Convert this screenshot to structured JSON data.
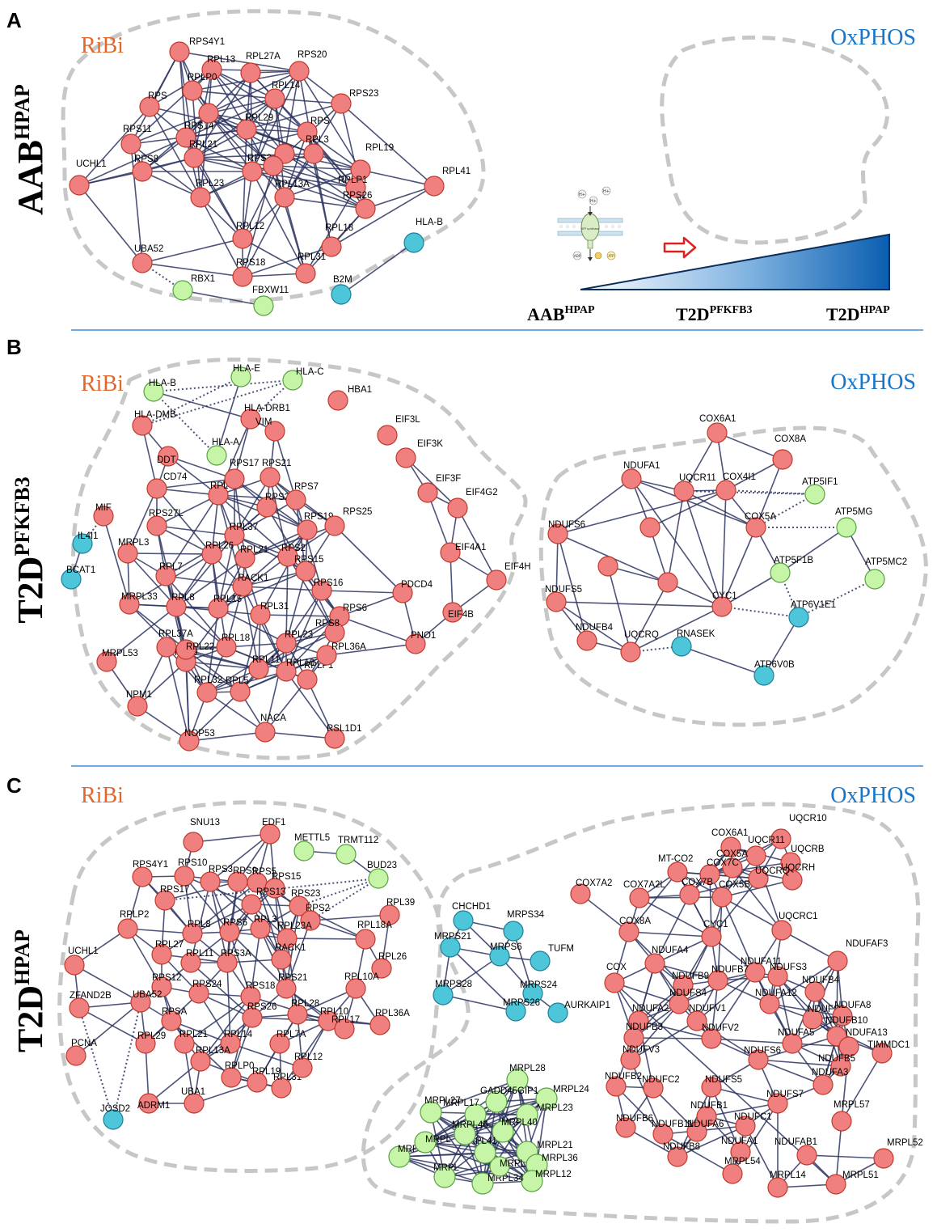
{
  "colors": {
    "red": "#f08080",
    "red_stroke": "#c0392b",
    "green": "#c6f5a8",
    "green_stroke": "#5aa043",
    "blue": "#4cc6d8",
    "blue_stroke": "#1f7f96",
    "ribi": "#e4672a",
    "oxphos": "#1976c9",
    "separator": "#3b8fd8"
  },
  "panel_letters": [
    "A",
    "B",
    "C"
  ],
  "cluster_titles": {
    "ribi": "RiBi",
    "oxphos": "OxPHOS"
  },
  "row_labels": [
    {
      "main": "AAB",
      "sup": "HPAP"
    },
    {
      "main": "T2D",
      "sup": "PFKFB3"
    },
    {
      "main": "T2D",
      "sup": "HPAP"
    }
  ],
  "scale_labels": [
    {
      "main": "AAB",
      "sup": "HPAP"
    },
    {
      "main": "T2D",
      "sup": "PFKFB3"
    },
    {
      "main": "T2D",
      "sup": "HPAP"
    }
  ],
  "atp_icon": {
    "ions": [
      "H+",
      "H+",
      "H+"
    ],
    "center": "ATP synthase",
    "left": "ADP",
    "right": "ATP"
  },
  "panels": [
    {
      "nodes": [
        [
          "RPS4Y1",
          "r"
        ],
        [
          "RPL13",
          "r"
        ],
        [
          "RPL27A",
          "r"
        ],
        [
          "RPS20",
          "r"
        ],
        [
          "RPLP0",
          "r"
        ],
        [
          "RPL14",
          "r"
        ],
        [
          "RPS",
          "r"
        ],
        [
          "RPS23",
          "r"
        ],
        [
          "RPS11",
          "r"
        ],
        [
          "RPS14",
          "r"
        ],
        [
          "RPL29",
          "r"
        ],
        [
          "RPS",
          "r"
        ],
        [
          "UCHL1",
          "r"
        ],
        [
          "RPL21",
          "r"
        ],
        [
          "RPL3",
          "r"
        ],
        [
          "RPL19",
          "r"
        ],
        [
          "RPL41",
          "r"
        ],
        [
          "RPS8",
          "r"
        ],
        [
          "RPS24",
          "r"
        ],
        [
          "RPL13A",
          "r"
        ],
        [
          "RPLP1",
          "r"
        ],
        [
          "RPS26",
          "r"
        ],
        [
          "RPL23",
          "r"
        ],
        [
          "RPL12",
          "r"
        ],
        [
          "RPL18",
          "r"
        ],
        [
          "UBA52",
          "r"
        ],
        [
          "RPS18",
          "r"
        ],
        [
          "RPL31",
          "r"
        ],
        [
          "HLA-B",
          "b"
        ],
        [
          "B2M",
          "b"
        ],
        [
          "RBX1",
          "g"
        ],
        [
          "FBXW11",
          "g"
        ],
        [
          "",
          "r"
        ],
        [
          "",
          "r"
        ],
        [
          "",
          "r"
        ]
      ]
    },
    {
      "nodes": [
        [
          "HLA-B",
          "g"
        ],
        [
          "HLA-E",
          "g"
        ],
        [
          "HLA-C",
          "g"
        ],
        [
          "HLA-DMB",
          "r"
        ],
        [
          "HLA-DRB1",
          "r"
        ],
        [
          "VIM",
          "r"
        ],
        [
          "DDT",
          "r"
        ],
        [
          "HLA-A",
          "g"
        ],
        [
          "HBA1",
          "r"
        ],
        [
          "EIF3L",
          "r"
        ],
        [
          "EIF3K",
          "r"
        ],
        [
          "EIF3F",
          "r"
        ],
        [
          "EIF4G2",
          "r"
        ],
        [
          "CD74",
          "r"
        ],
        [
          "MIF",
          "r"
        ],
        [
          "RPS17",
          "r"
        ],
        [
          "RPS21",
          "r"
        ],
        [
          "RPL",
          "r"
        ],
        [
          "RPS29",
          "r"
        ],
        [
          "RPS7",
          "r"
        ],
        [
          "RPS27L",
          "r"
        ],
        [
          "RPL37",
          "r"
        ],
        [
          "RPS19",
          "r"
        ],
        [
          "IL4I1",
          "b"
        ],
        [
          "BCAT1",
          "b"
        ],
        [
          "MRPL3",
          "r"
        ],
        [
          "RPL26",
          "r"
        ],
        [
          "RPL21",
          "r"
        ],
        [
          "RPS2",
          "r"
        ],
        [
          "RPS15",
          "r"
        ],
        [
          "RPS25",
          "r"
        ],
        [
          "EIF4A1",
          "r"
        ],
        [
          "RPL7",
          "r"
        ],
        [
          "RACK1",
          "r"
        ],
        [
          "RPS16",
          "r"
        ],
        [
          "RPS6",
          "r"
        ],
        [
          "EIF4H",
          "r"
        ],
        [
          "MRPL33",
          "r"
        ],
        [
          "RPL8",
          "r"
        ],
        [
          "RPL15",
          "r"
        ],
        [
          "RPL31",
          "r"
        ],
        [
          "RPS8",
          "r"
        ],
        [
          "PDCD4",
          "r"
        ],
        [
          "EIF4B",
          "r"
        ],
        [
          "RPL37A",
          "r"
        ],
        [
          "RPL9",
          "r"
        ],
        [
          "RPL18",
          "r"
        ],
        [
          "RPL23",
          "r"
        ],
        [
          "RPL22",
          "r"
        ],
        [
          "RPL11",
          "r"
        ],
        [
          "RPLP1",
          "r"
        ],
        [
          "RPL36A",
          "r"
        ],
        [
          "PNO1",
          "r"
        ],
        [
          "MRPL53",
          "r"
        ],
        [
          "RPL32",
          "r"
        ],
        [
          "RPL5",
          "r"
        ],
        [
          "RPL10",
          "r"
        ],
        [
          "NPM1",
          "r"
        ],
        [
          "NOP53",
          "r"
        ],
        [
          "NACA",
          "r"
        ],
        [
          "RSL1D1",
          "r"
        ],
        [
          "COX6A1",
          "r"
        ],
        [
          "COX8A",
          "r"
        ],
        [
          "NDUFA1",
          "r"
        ],
        [
          "UQCR11",
          "r"
        ],
        [
          "COX4I1",
          "r"
        ],
        [
          "ATP5IF1",
          "g"
        ],
        [
          "NDUFS6",
          "r"
        ],
        [
          "COX5A",
          "r"
        ],
        [
          "ATP5MG",
          "g"
        ],
        [
          "NDUFS5",
          "r"
        ],
        [
          "ATP5F1B",
          "g"
        ],
        [
          "CYC1",
          "r"
        ],
        [
          "ATP5MC2",
          "g"
        ],
        [
          "NDUFB4",
          "r"
        ],
        [
          "ATP6V1E1",
          "b"
        ],
        [
          "UQCRQ",
          "r"
        ],
        [
          "RNASEK",
          "b"
        ],
        [
          "ATP6V0B",
          "b"
        ],
        [
          "",
          "r"
        ],
        [
          "",
          "r"
        ],
        [
          "",
          "r"
        ]
      ]
    },
    {
      "nodes": [
        [
          "SNU13",
          "r"
        ],
        [
          "EDF1",
          "r"
        ],
        [
          "METTL5",
          "g"
        ],
        [
          "TRMT112",
          "g"
        ],
        [
          "RPS4Y1",
          "r"
        ],
        [
          "BUD23",
          "g"
        ],
        [
          "RPS10",
          "r"
        ],
        [
          "RPS3",
          "r"
        ],
        [
          "RPS9",
          "r"
        ],
        [
          "RPS5",
          "r"
        ],
        [
          "RPS15",
          "r"
        ],
        [
          "RPS17",
          "r"
        ],
        [
          "RPS13",
          "r"
        ],
        [
          "RPS23",
          "r"
        ],
        [
          "RPL39",
          "r"
        ],
        [
          "RPLP2",
          "r"
        ],
        [
          "RPS2",
          "r"
        ],
        [
          "RPL8",
          "r"
        ],
        [
          "RPS6",
          "r"
        ],
        [
          "RPL3",
          "r"
        ],
        [
          "RPL23A",
          "r"
        ],
        [
          "RPL18A",
          "r"
        ],
        [
          "UCHL1",
          "r"
        ],
        [
          "RPL27",
          "r"
        ],
        [
          "RPL11",
          "r"
        ],
        [
          "RPS3A",
          "r"
        ],
        [
          "RACK1",
          "r"
        ],
        [
          "RPL26",
          "r"
        ],
        [
          "RPS12",
          "r"
        ],
        [
          "RPS24",
          "r"
        ],
        [
          "RPS18",
          "r"
        ],
        [
          "RPS21",
          "r"
        ],
        [
          "RPL10A",
          "r"
        ],
        [
          "ZFAND2B",
          "r"
        ],
        [
          "RPL36A",
          "r"
        ],
        [
          "UBA52",
          "r"
        ],
        [
          "RPSA",
          "r"
        ],
        [
          "RPS26",
          "r"
        ],
        [
          "RPL28",
          "r"
        ],
        [
          "RPL10",
          "r"
        ],
        [
          "PCNA",
          "r"
        ],
        [
          "RPL21",
          "r"
        ],
        [
          "RPL14",
          "r"
        ],
        [
          "RPL7A",
          "r"
        ],
        [
          "RPL17",
          "r"
        ],
        [
          "RPL29",
          "r"
        ],
        [
          "RPL13A",
          "r"
        ],
        [
          "RPLP0",
          "r"
        ],
        [
          "RPL19",
          "r"
        ],
        [
          "RPL31",
          "r"
        ],
        [
          "RPL12",
          "r"
        ],
        [
          "JOSD2",
          "b"
        ],
        [
          "ADRM1",
          "r"
        ],
        [
          "UBA1",
          "r"
        ],
        [
          "CHCHD1",
          "b"
        ],
        [
          "MRPS34",
          "b"
        ],
        [
          "MRPS21",
          "b"
        ],
        [
          "MRPS6",
          "b"
        ],
        [
          "TUFM",
          "b"
        ],
        [
          "MRPS28",
          "b"
        ],
        [
          "MRPS24",
          "b"
        ],
        [
          "MRPS26",
          "b"
        ],
        [
          "AURKAIP1",
          "b"
        ],
        [
          "MRPL28",
          "g"
        ],
        [
          "MRPL24",
          "g"
        ],
        [
          "GADD45GIP1",
          "g"
        ],
        [
          "MRPL23",
          "g"
        ],
        [
          "MRPL27",
          "g"
        ],
        [
          "MRPL17",
          "g"
        ],
        [
          "MRPL40",
          "g"
        ],
        [
          "MRPL41",
          "g"
        ],
        [
          "MRPL46",
          "g"
        ],
        [
          "MRPL21",
          "g"
        ],
        [
          "MRPL36",
          "g"
        ],
        [
          "MRPL12",
          "g"
        ],
        [
          "MRPL34",
          "g"
        ],
        [
          "MRPL",
          "g"
        ],
        [
          "MRPL",
          "g"
        ],
        [
          "MRPL",
          "g"
        ],
        [
          "MRPL",
          "g"
        ],
        [
          "UQCR10",
          "r"
        ],
        [
          "UQCR11",
          "r"
        ],
        [
          "UQCRB",
          "r"
        ],
        [
          "UQCRH",
          "r"
        ],
        [
          "COX6A1",
          "r"
        ],
        [
          "COX5A",
          "r"
        ],
        [
          "UQCRQ",
          "r"
        ],
        [
          "MT-CO2",
          "r"
        ],
        [
          "COX7C",
          "r"
        ],
        [
          "COX7A2",
          "r"
        ],
        [
          "COX7A2L",
          "r"
        ],
        [
          "COX7B",
          "r"
        ],
        [
          "COX5B",
          "r"
        ],
        [
          "COX8A",
          "r"
        ],
        [
          "CYC1",
          "r"
        ],
        [
          "UQCRC1",
          "r"
        ],
        [
          "NDUFAF3",
          "r"
        ],
        [
          "NDUFA4",
          "r"
        ],
        [
          "NDUFA11",
          "r"
        ],
        [
          "NDUFB7",
          "r"
        ],
        [
          "NDUFS3",
          "r"
        ],
        [
          "NDUFB9",
          "r"
        ],
        [
          "NDUFB4",
          "r"
        ],
        [
          "NDUFS4",
          "r"
        ],
        [
          "NDUFA12",
          "r"
        ],
        [
          "NDUFS8",
          "r"
        ],
        [
          "NDUFA8",
          "r"
        ],
        [
          "NDUFA2",
          "r"
        ],
        [
          "NDUFV1",
          "r"
        ],
        [
          "NDUFB10",
          "r"
        ],
        [
          "NDUFA13",
          "r"
        ],
        [
          "NDUFB3",
          "r"
        ],
        [
          "NDUFV2",
          "r"
        ],
        [
          "NDUFA5",
          "r"
        ],
        [
          "TIMMDC1",
          "r"
        ],
        [
          "NDUFV3",
          "r"
        ],
        [
          "NDUFS6",
          "r"
        ],
        [
          "NDUFB5",
          "r"
        ],
        [
          "NDUFB2",
          "r"
        ],
        [
          "NDUFC2",
          "r"
        ],
        [
          "NDUFS5",
          "r"
        ],
        [
          "NDUFA3",
          "r"
        ],
        [
          "NDUFB1",
          "r"
        ],
        [
          "NDUFS7",
          "r"
        ],
        [
          "NDUFB6",
          "r"
        ],
        [
          "NDUFA6",
          "r"
        ],
        [
          "NDUFC1",
          "r"
        ],
        [
          "NDUFB11",
          "r"
        ],
        [
          "NDUFA1",
          "r"
        ],
        [
          "NDUFB8",
          "r"
        ],
        [
          "NDUFAB1",
          "r"
        ],
        [
          "MRPL57",
          "r"
        ],
        [
          "MRPL52",
          "r"
        ],
        [
          "MRPL54",
          "r"
        ],
        [
          "MRPL14",
          "r"
        ],
        [
          "MRPL51",
          "r"
        ],
        [
          "COX",
          "r"
        ]
      ]
    }
  ]
}
